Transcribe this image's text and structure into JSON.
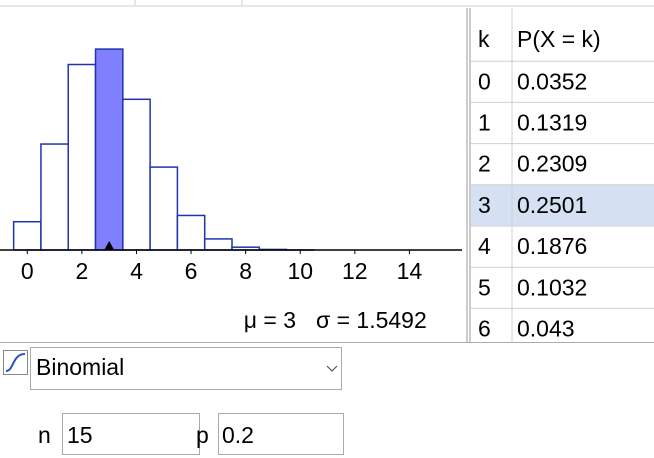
{
  "chart_data": {
    "type": "bar",
    "x": [
      0,
      1,
      2,
      3,
      4,
      5,
      6,
      7,
      8,
      9,
      10,
      11,
      12,
      13,
      14,
      15
    ],
    "values": [
      0.0352,
      0.1319,
      0.2309,
      0.2501,
      0.1876,
      0.1032,
      0.043,
      0.0138,
      0.0035,
      0.0007,
      0.0001,
      0,
      0,
      0,
      0,
      0
    ],
    "selected": 3,
    "color": "#ffffff",
    "highlight_color": "#8080ff",
    "edge_color": "#1f35b0",
    "xlim": [
      -1,
      16
    ],
    "xticks": [
      0,
      2,
      4,
      6,
      8,
      10,
      12,
      14
    ],
    "ylim": [
      0,
      0.3
    ],
    "annotations": [
      "μ = 3",
      "σ = 1.5492"
    ]
  },
  "table": {
    "header": [
      "k",
      "P(X = k)"
    ],
    "rows": [
      [
        "0",
        "0.0352"
      ],
      [
        "1",
        "0.1319"
      ],
      [
        "2",
        "0.2309"
      ],
      [
        "3",
        "0.2501"
      ],
      [
        "4",
        "0.1876"
      ],
      [
        "5",
        "0.1032"
      ],
      [
        "6",
        "0.043"
      ]
    ]
  },
  "controls": {
    "distribution": "Binomial",
    "parameters": [
      {
        "label": "n",
        "value": "15"
      },
      {
        "label": "p",
        "value": "0.2"
      }
    ]
  }
}
